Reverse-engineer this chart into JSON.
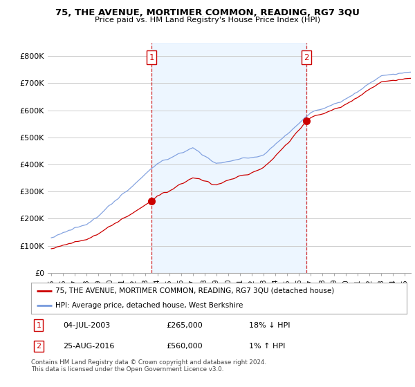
{
  "title1": "75, THE AVENUE, MORTIMER COMMON, READING, RG7 3QU",
  "title2": "Price paid vs. HM Land Registry's House Price Index (HPI)",
  "background_color": "#ffffff",
  "plot_bg_color": "#ffffff",
  "grid_color": "#cccccc",
  "hpi_color": "#7799dd",
  "hpi_fill_color": "#ddeeff",
  "price_color": "#cc0000",
  "sale1_date": "04-JUL-2003",
  "sale1_price": 265000,
  "sale2_date": "25-AUG-2016",
  "sale2_price": 560000,
  "sale1_hpi_pct": "18% ↓ HPI",
  "sale2_hpi_pct": "1% ↑ HPI",
  "legend_line1": "75, THE AVENUE, MORTIMER COMMON, READING, RG7 3QU (detached house)",
  "legend_line2": "HPI: Average price, detached house, West Berkshire",
  "footnote": "Contains HM Land Registry data © Crown copyright and database right 2024.\nThis data is licensed under the Open Government Licence v3.0.",
  "ylim_max": 850000,
  "yticks": [
    0,
    100000,
    200000,
    300000,
    400000,
    500000,
    600000,
    700000,
    800000
  ],
  "ytick_labels": [
    "£0",
    "£100K",
    "£200K",
    "£300K",
    "£400K",
    "£500K",
    "£600K",
    "£700K",
    "£800K"
  ],
  "sale1_x": 2003.5,
  "sale2_x": 2016.65,
  "xstart": 1995.0,
  "xend": 2025.2
}
